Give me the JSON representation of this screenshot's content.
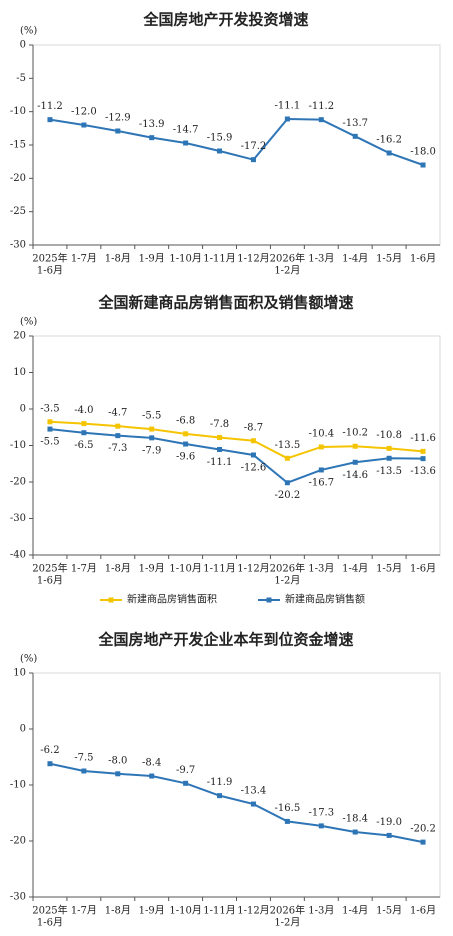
{
  "chart_data": [
    {
      "type": "line",
      "title": "全国房地产开发投资增速",
      "y_unit": "(%)",
      "categories": [
        [
          "2025年",
          "1-6月"
        ],
        "1-7月",
        "1-8月",
        "1-9月",
        "1-10月",
        "1-11月",
        "1-12月",
        [
          "2026年",
          "1-2月"
        ],
        "1-3月",
        "1-4月",
        "1-5月",
        "1-6月"
      ],
      "ylim": [
        -30,
        0
      ],
      "yticks": [
        0,
        -5,
        -10,
        -15,
        -20,
        -25,
        -30
      ],
      "series": [
        {
          "color": "#2e75b6",
          "values": [
            -11.2,
            -12.0,
            -12.9,
            -13.9,
            -14.7,
            -15.9,
            -17.2,
            -11.1,
            -11.2,
            -13.7,
            -16.2,
            -18.0
          ],
          "value_labels": [
            "-11.2",
            "-12.0",
            "-12.9",
            "-13.9",
            "-14.7",
            "-15.9",
            "-17.2",
            "-11.1",
            "-11.2",
            "-13.7",
            "-16.2",
            "-18.0"
          ]
        }
      ]
    },
    {
      "type": "line",
      "title": "全国新建商品房销售面积及销售额增速",
      "y_unit": "(%)",
      "categories": [
        [
          "2025年",
          "1-6月"
        ],
        "1-7月",
        "1-8月",
        "1-9月",
        "1-10月",
        "1-11月",
        "1-12月",
        [
          "2026年",
          "1-2月"
        ],
        "1-3月",
        "1-4月",
        "1-5月",
        "1-6月"
      ],
      "ylim": [
        -40,
        20
      ],
      "yticks": [
        20,
        10,
        0,
        -10,
        -20,
        -30,
        -40
      ],
      "series": [
        {
          "name": "新建商品房销售面积",
          "color": "#f5c400",
          "values": [
            -3.5,
            -4.0,
            -4.7,
            -5.5,
            -6.8,
            -7.8,
            -8.7,
            -13.5,
            -10.4,
            -10.2,
            -10.8,
            -11.6
          ],
          "value_labels": [
            "-3.5",
            "-4.0",
            "-4.7",
            "-5.5",
            "-6.8",
            "-7.8",
            "-8.7",
            "-13.5",
            "-10.4",
            "-10.2",
            "-10.8",
            "-11.6"
          ]
        },
        {
          "name": "新建商品房销售额",
          "color": "#2e75b6",
          "values": [
            -5.5,
            -6.5,
            -7.3,
            -7.9,
            -9.6,
            -11.1,
            -12.6,
            -20.2,
            -16.7,
            -14.6,
            -13.5,
            -13.6
          ],
          "value_labels": [
            "-5.5",
            "-6.5",
            "-7.3",
            "-7.9",
            "-9.6",
            "-11.1",
            "-12.6",
            "-20.2",
            "-16.7",
            "-14.6",
            "-13.5",
            "-13.6"
          ]
        }
      ]
    },
    {
      "type": "line",
      "title": "全国房地产开发企业本年到位资金增速",
      "y_unit": "(%)",
      "categories": [
        [
          "2025年",
          "1-6月"
        ],
        "1-7月",
        "1-8月",
        "1-9月",
        "1-10月",
        "1-11月",
        "1-12月",
        [
          "2026年",
          "1-2月"
        ],
        "1-3月",
        "1-4月",
        "1-5月",
        "1-6月"
      ],
      "ylim": [
        -30,
        10
      ],
      "yticks": [
        10,
        0,
        -10,
        -20,
        -30
      ],
      "series": [
        {
          "color": "#2e75b6",
          "values": [
            -6.2,
            -7.5,
            -8.0,
            -8.4,
            -9.7,
            -11.9,
            -13.4,
            -16.5,
            -17.3,
            -18.4,
            -19.0,
            -20.2
          ],
          "value_labels": [
            "-6.2",
            "-7.5",
            "-8.0",
            "-8.4",
            "-9.7",
            "-11.9",
            "-13.4",
            "-16.5",
            "-17.3",
            "-18.4",
            "-19.0",
            "-20.2"
          ]
        }
      ]
    }
  ]
}
